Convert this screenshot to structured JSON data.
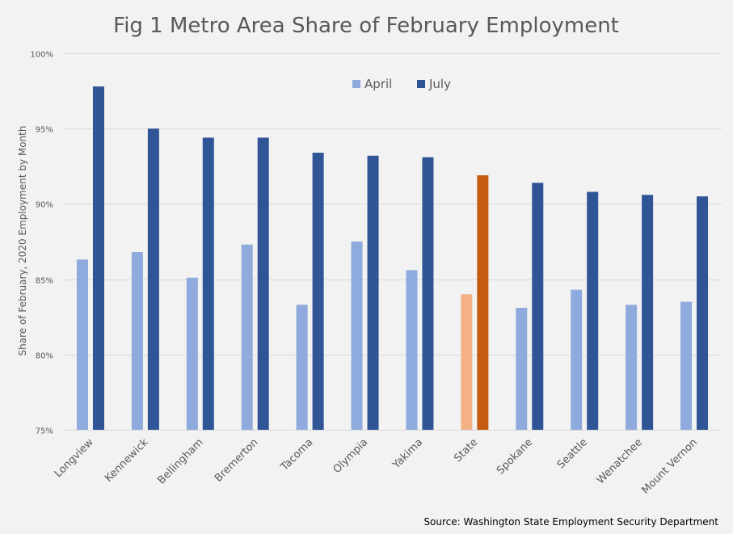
{
  "chart_data": {
    "type": "bar",
    "title": "Fig 1 Metro Area Share of February Employment",
    "ylabel": "Share of February, 2020 Employment by Month",
    "xlabel": "",
    "source": "Source: Washington State Employment Security Department",
    "ylim": [
      75,
      100
    ],
    "yticks": [
      75,
      80,
      85,
      90,
      95,
      100
    ],
    "ytick_labels": [
      "75%",
      "80%",
      "85%",
      "90%",
      "95%",
      "100%"
    ],
    "grid": true,
    "legend_position": "top-center",
    "categories": [
      "Longview",
      "Kennewick",
      "Bellingham",
      "Bremerton",
      "Tacoma",
      "Olympia",
      "Yakima",
      "State",
      "Spokane",
      "Seattle",
      "Wenatchee",
      "Mount Vernon"
    ],
    "highlight_category": "State",
    "series": [
      {
        "name": "April",
        "color": "#8faadc",
        "highlight_color": "#f4b183",
        "values": [
          86.3,
          86.8,
          85.1,
          87.3,
          83.3,
          87.5,
          85.6,
          84.0,
          83.1,
          84.3,
          83.3,
          83.5
        ]
      },
      {
        "name": "July",
        "color": "#2f5597",
        "highlight_color": "#c55a11",
        "values": [
          97.8,
          95.0,
          94.4,
          94.4,
          93.4,
          93.2,
          93.1,
          91.9,
          91.4,
          90.8,
          90.6,
          90.5
        ]
      }
    ]
  }
}
